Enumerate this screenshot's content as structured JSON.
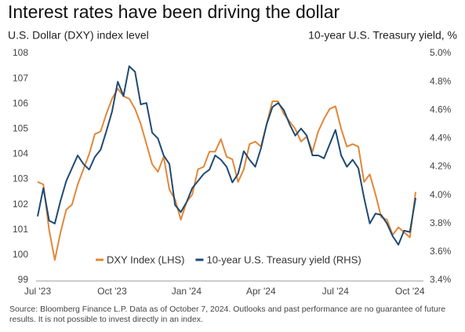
{
  "chart_data": {
    "type": "line",
    "title": "Interest rates have been driving the dollar",
    "ylabel": "U.S. Dollar (DXY) index level",
    "y2label": "10-year U.S. Treasury yield, %",
    "note": "Source: Bloomberg Finance L.P. Data as of October 7, 2024. Outlooks and past performance are no guarantee of future results. It is not possible to invest directly in an index.",
    "categories": [
      "Jul '23",
      null,
      null,
      null,
      null,
      null,
      null,
      null,
      null,
      null,
      null,
      null,
      null,
      "Oct '23",
      null,
      null,
      null,
      null,
      null,
      null,
      null,
      null,
      null,
      null,
      null,
      null,
      "Jan '24",
      null,
      null,
      null,
      null,
      null,
      null,
      null,
      null,
      null,
      null,
      null,
      null,
      "Apr '24",
      null,
      null,
      null,
      null,
      null,
      null,
      null,
      null,
      null,
      null,
      null,
      null,
      "Jul '24",
      null,
      null,
      null,
      null,
      null,
      null,
      null,
      null,
      null,
      null,
      null,
      null,
      "Oct '24",
      null
    ],
    "series": [
      {
        "name": "DXY Index (LHS)",
        "color": "#e0883a",
        "values": [
          102.9,
          102.8,
          101.0,
          99.8,
          100.9,
          101.8,
          102.0,
          102.8,
          103.4,
          104.0,
          104.8,
          104.9,
          105.6,
          106.2,
          106.6,
          106.3,
          106.2,
          105.8,
          105.2,
          104.4,
          103.6,
          103.3,
          103.9,
          102.6,
          102.2,
          101.4,
          102.1,
          102.4,
          103.4,
          103.5,
          104.1,
          104.1,
          104.6,
          103.9,
          103.8,
          102.9,
          103.4,
          104.4,
          104.5,
          104.3,
          105.2,
          106.1,
          106.1,
          105.6,
          105.3,
          105.0,
          104.5,
          104.7,
          104.1,
          104.9,
          105.4,
          105.8,
          105.9,
          105.0,
          104.3,
          104.4,
          104.3,
          102.9,
          103.2,
          102.4,
          101.5,
          101.4,
          100.8,
          101.1,
          100.9,
          100.7,
          102.5
        ]
      },
      {
        "name": "10-year U.S. Treasury yield (RHS)",
        "color": "#1f4a73",
        "axis": "y2",
        "values": [
          3.85,
          4.05,
          3.82,
          3.8,
          3.96,
          4.1,
          4.19,
          4.28,
          4.22,
          4.18,
          4.27,
          4.32,
          4.45,
          4.59,
          4.8,
          4.7,
          4.91,
          4.87,
          4.64,
          4.65,
          4.44,
          4.4,
          4.28,
          4.22,
          3.93,
          3.88,
          3.95,
          4.05,
          4.1,
          4.15,
          4.18,
          4.28,
          4.25,
          4.2,
          4.09,
          4.15,
          4.31,
          4.25,
          4.2,
          4.33,
          4.5,
          4.62,
          4.65,
          4.6,
          4.5,
          4.42,
          4.47,
          4.42,
          4.28,
          4.28,
          4.26,
          4.36,
          4.46,
          4.28,
          4.2,
          4.25,
          4.19,
          3.98,
          3.8,
          3.87,
          3.86,
          3.8,
          3.71,
          3.65,
          3.75,
          3.74,
          3.98
        ]
      }
    ],
    "ylim": [
      99,
      108
    ],
    "yticks": [
      99,
      100,
      101,
      102,
      103,
      104,
      105,
      106,
      107,
      108
    ],
    "y2lim": [
      3.4,
      5.0
    ],
    "y2ticks": [
      {
        "value": 3.4,
        "label": "3.4%"
      },
      {
        "value": 3.6,
        "label": "3.6%"
      },
      {
        "value": 3.8,
        "label": "3.8%"
      },
      {
        "value": 4.0,
        "label": "4.0%"
      },
      {
        "value": 4.2,
        "label": "4.2%"
      },
      {
        "value": 4.4,
        "label": "4.4%"
      },
      {
        "value": 4.6,
        "label": "4.6%"
      },
      {
        "value": 4.8,
        "label": "4.8%"
      },
      {
        "value": 5.0,
        "label": "5.0%"
      }
    ],
    "legend": "bottom",
    "grid": false
  }
}
